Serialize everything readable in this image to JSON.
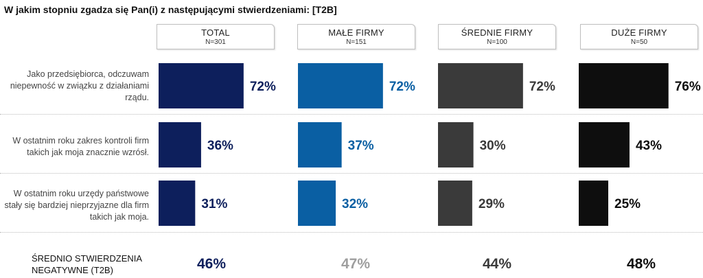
{
  "title": "W jakim stopniu zgadza się Pan(i) z następującymi stwierdzeniami: [T2B]",
  "colors": {
    "total": "#0d1f5c",
    "male": "#0a5fa3",
    "srednie": "#3a3a3a",
    "duze": "#0e0e0e",
    "summary_male": "#9e9e9e"
  },
  "groups": [
    {
      "name": "TOTAL",
      "n": "N=301"
    },
    {
      "name": "MAŁE FIRMY",
      "n": "N=151"
    },
    {
      "name": "ŚREDNIE FIRMY",
      "n": "N=100"
    },
    {
      "name": "DUŻE  FIRMY",
      "n": "N=50"
    }
  ],
  "statements": [
    "Jako przedsiębiorca, odczuwam niepewność w związku z działaniami rządu.",
    "W ostatnim roku zakres kontroli firm takich jak moja znacznie wzrósł.",
    "W ostatnim roku urzędy państwowe stały się bardziej nieprzyjazne dla firm takich jak moja."
  ],
  "summary": {
    "label_line1": "ŚREDNIO STWIERDZENIA",
    "label_line2": "NEGATYWNE (T2B)",
    "values": [
      "46%",
      "47%",
      "44%",
      "48%"
    ]
  },
  "chart_data": {
    "type": "bar",
    "categories": [
      "Jako przedsiębiorca, odczuwam niepewność w związku z działaniami rządu.",
      "W ostatnim roku zakres kontroli firm takich jak moja znacznie wzrósł.",
      "W ostatnim roku urzędy państwowe stały się bardziej nieprzyjazne dla firm takich jak moja."
    ],
    "series": [
      {
        "name": "TOTAL",
        "values": [
          72,
          36,
          31
        ],
        "labels": [
          "72%",
          "36%",
          "31%"
        ]
      },
      {
        "name": "MAŁE FIRMY",
        "values": [
          72,
          37,
          32
        ],
        "labels": [
          "72%",
          "37%",
          "32%"
        ]
      },
      {
        "name": "ŚREDNIE FIRMY",
        "values": [
          72,
          30,
          29
        ],
        "labels": [
          "72%",
          "30%",
          "29%"
        ]
      },
      {
        "name": "DUŻE  FIRMY",
        "values": [
          76,
          43,
          25
        ],
        "labels": [
          "76%",
          "43%",
          "25%"
        ]
      }
    ],
    "ylim": [
      0,
      100
    ]
  }
}
